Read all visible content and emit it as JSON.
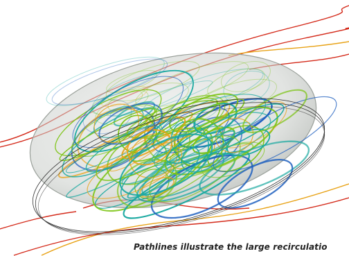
{
  "figure": {
    "caption": "Pathlines illustrate the large recirculatio",
    "subject": "cfd-pathline-visualization",
    "colors": {
      "tube_shell": "#c8ccc8",
      "tube_rim": "#333333",
      "outer_flow": "#d42a1a",
      "low_speed": "#1e5fbf",
      "mid_speed": "#19a8a0",
      "high_speed": "#7cc414",
      "peak_speed": "#e8a216"
    }
  }
}
